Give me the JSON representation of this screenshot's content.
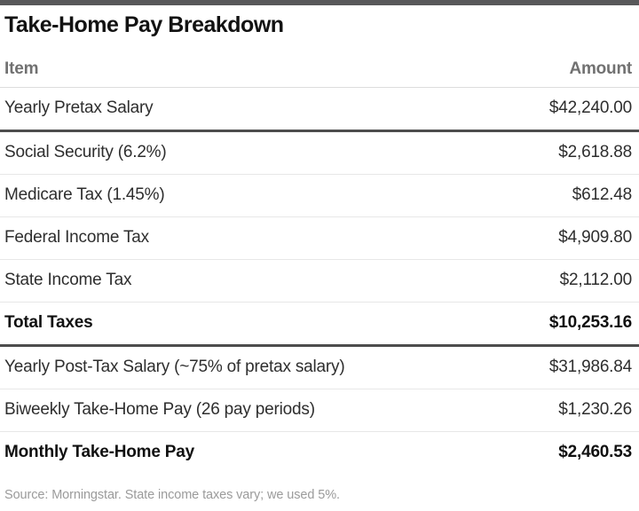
{
  "title": "Take-Home Pay Breakdown",
  "table": {
    "columns": {
      "item": "Item",
      "amount": "Amount"
    },
    "rows": [
      {
        "item": "Yearly Pretax Salary",
        "amount": "$42,240.00"
      },
      {
        "item": "Social Security (6.2%)",
        "amount": "$2,618.88"
      },
      {
        "item": "Medicare Tax (1.45%)",
        "amount": "$612.48"
      },
      {
        "item": "Federal Income Tax",
        "amount": "$4,909.80"
      },
      {
        "item": "State Income Tax",
        "amount": "$2,112.00"
      },
      {
        "item": "Total Taxes",
        "amount": "$10,253.16"
      },
      {
        "item": "Yearly Post-Tax Salary (~75% of pretax salary)",
        "amount": "$31,986.84"
      },
      {
        "item": "Biweekly Take-Home Pay (26 pay periods)",
        "amount": "$1,230.26"
      },
      {
        "item": "Monthly Take-Home Pay",
        "amount": "$2,460.53"
      }
    ]
  },
  "footer": {
    "source": "Source: Morningstar. State income taxes vary; we used 5%."
  },
  "colors": {
    "top_bar": "#58585a",
    "header_text": "#717171",
    "body_text": "#2e2e2e",
    "rule_dark": "#4d4d4d",
    "rule_light": "#e7e7e7",
    "source_text": "#9b9b9b"
  },
  "chart_data": {
    "type": "table",
    "title": "Take-Home Pay Breakdown",
    "columns": [
      "Item",
      "Amount"
    ],
    "rows": [
      [
        "Yearly Pretax Salary",
        42240.0
      ],
      [
        "Social Security (6.2%)",
        2618.88
      ],
      [
        "Medicare Tax (1.45%)",
        612.48
      ],
      [
        "Federal Income Tax",
        4909.8
      ],
      [
        "State Income Tax",
        2112.0
      ],
      [
        "Total Taxes",
        10253.16
      ],
      [
        "Yearly Post-Tax Salary (~75% of pretax salary)",
        31986.84
      ],
      [
        "Biweekly Take-Home Pay (26 pay periods)",
        1230.26
      ],
      [
        "Monthly Take-Home Pay",
        2460.53
      ]
    ],
    "bold_rows": [
      5,
      8
    ],
    "section_breaks_after_rows": [
      0,
      5
    ],
    "source_note": "Source: Morningstar. State income taxes vary; we used 5%."
  }
}
